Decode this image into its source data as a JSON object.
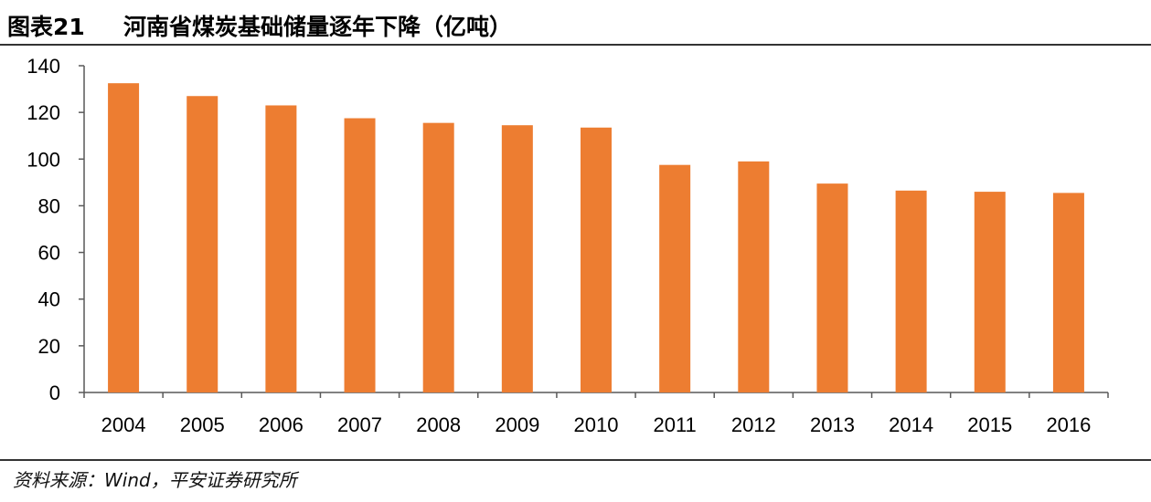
{
  "header": {
    "figure_label": "图表21",
    "title": "河南省煤炭基础储量逐年下降（亿吨）"
  },
  "footer": {
    "source": "资料来源：Wind，平安证券研究所"
  },
  "chart_data": {
    "type": "bar",
    "title": "河南省煤炭基础储量逐年下降（亿吨）",
    "xlabel": "",
    "ylabel": "",
    "categories": [
      "2004",
      "2005",
      "2006",
      "2007",
      "2008",
      "2009",
      "2010",
      "2011",
      "2012",
      "2013",
      "2014",
      "2015",
      "2016"
    ],
    "series": [
      {
        "values": [
          132.5,
          127,
          123,
          117.5,
          115.5,
          114.5,
          113.5,
          97.5,
          99,
          89.5,
          86.5,
          86,
          85.5
        ]
      }
    ],
    "ylim": [
      0,
      140
    ],
    "yticks": [
      0,
      20,
      40,
      60,
      80,
      100,
      120,
      140
    ],
    "grid": false,
    "legend": "none",
    "bar_color": "#ED7D31"
  }
}
